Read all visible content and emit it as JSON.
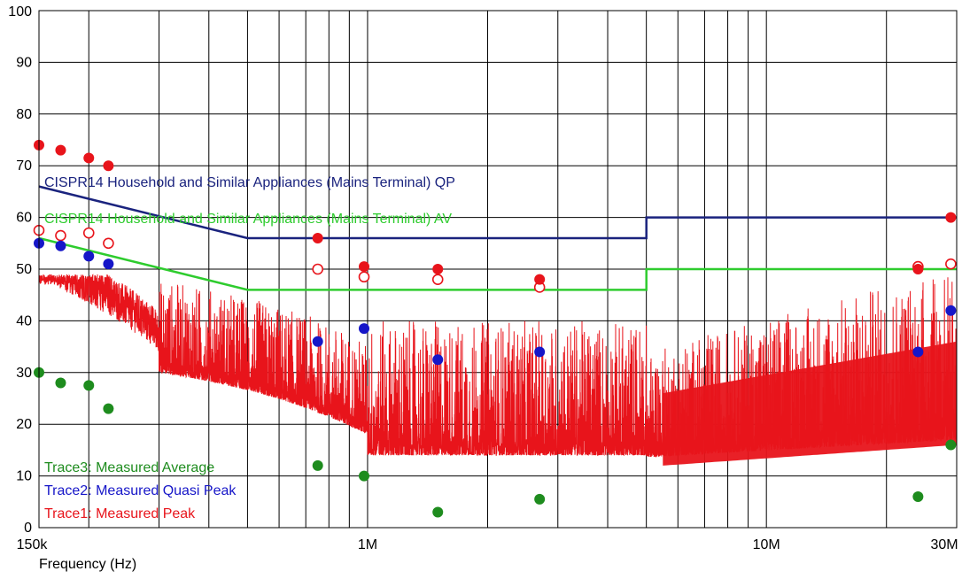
{
  "chart_data": {
    "type": "line",
    "xlabel": "Frequency (Hz)",
    "ylabel": "",
    "x_scale": "log",
    "xlim": [
      150000,
      30000000
    ],
    "ylim": [
      0,
      100
    ],
    "x_ticks": [
      {
        "value": 150000,
        "label": "150k"
      },
      {
        "value": 1000000,
        "label": "1M"
      },
      {
        "value": 10000000,
        "label": "10M"
      },
      {
        "value": 30000000,
        "label": "30M"
      }
    ],
    "y_ticks": [
      0,
      10,
      20,
      30,
      40,
      50,
      60,
      70,
      80,
      90,
      100
    ],
    "grid": true,
    "limit_lines": [
      {
        "name": "CISPR14 Household and Similar Appliances (Mains Terminal) QP",
        "color": "#1a237e",
        "points": [
          [
            150000,
            66
          ],
          [
            500000,
            56
          ],
          [
            5000000,
            56
          ],
          [
            5000000,
            60
          ],
          [
            30000000,
            60
          ]
        ]
      },
      {
        "name": "CISPR14 Household and Similar Appliances (Mains Terminal) AV",
        "color": "#2ecc2e",
        "points": [
          [
            150000,
            56
          ],
          [
            500000,
            46
          ],
          [
            5000000,
            46
          ],
          [
            5000000,
            50
          ],
          [
            30000000,
            50
          ]
        ]
      }
    ],
    "series": [
      {
        "name": "Trace1: Measured Peak",
        "color": "#e8141b",
        "style": "noisy-trace",
        "markers": [
          [
            150000,
            74
          ],
          [
            170000,
            73
          ],
          [
            200000,
            71.5
          ],
          [
            224000,
            70
          ],
          [
            750000,
            56
          ],
          [
            980000,
            50.5
          ],
          [
            1500000,
            50
          ],
          [
            2700000,
            48
          ],
          [
            24000000,
            50
          ],
          [
            29000000,
            60
          ]
        ]
      },
      {
        "name": "Trace2: Measured Quasi Peak",
        "color": "#1616c8",
        "markers": [
          [
            150000,
            55
          ],
          [
            170000,
            54.5
          ],
          [
            200000,
            52.5
          ],
          [
            224000,
            51
          ],
          [
            750000,
            36
          ],
          [
            980000,
            38.5
          ],
          [
            1500000,
            32.5
          ],
          [
            2700000,
            34
          ],
          [
            24000000,
            34
          ],
          [
            29000000,
            42
          ]
        ]
      },
      {
        "name": "Trace3: Measured Average",
        "color": "#1e8c1e",
        "markers": [
          [
            150000,
            30
          ],
          [
            170000,
            28
          ],
          [
            200000,
            27.5
          ],
          [
            224000,
            23
          ],
          [
            750000,
            12
          ],
          [
            980000,
            10
          ],
          [
            1500000,
            3
          ],
          [
            2700000,
            5.5
          ],
          [
            24000000,
            6
          ],
          [
            29000000,
            16
          ]
        ]
      }
    ],
    "open_markers": {
      "name": "Peak (open circles)",
      "color": "#e8141b",
      "points": [
        [
          150000,
          57.5
        ],
        [
          170000,
          56.5
        ],
        [
          200000,
          57
        ],
        [
          224000,
          55
        ],
        [
          750000,
          50
        ],
        [
          980000,
          48.5
        ],
        [
          1500000,
          48
        ],
        [
          2700000,
          46.5
        ],
        [
          24000000,
          50.5
        ],
        [
          29000000,
          51
        ]
      ]
    },
    "legend": {
      "placement": "bottom-left",
      "entries": [
        {
          "text": "Trace3: Measured Average",
          "color": "#1e8c1e"
        },
        {
          "text": "Trace2: Measured Quasi Peak",
          "color": "#1616c8"
        },
        {
          "text": "Trace1: Measured Peak",
          "color": "#e8141b"
        }
      ]
    }
  }
}
